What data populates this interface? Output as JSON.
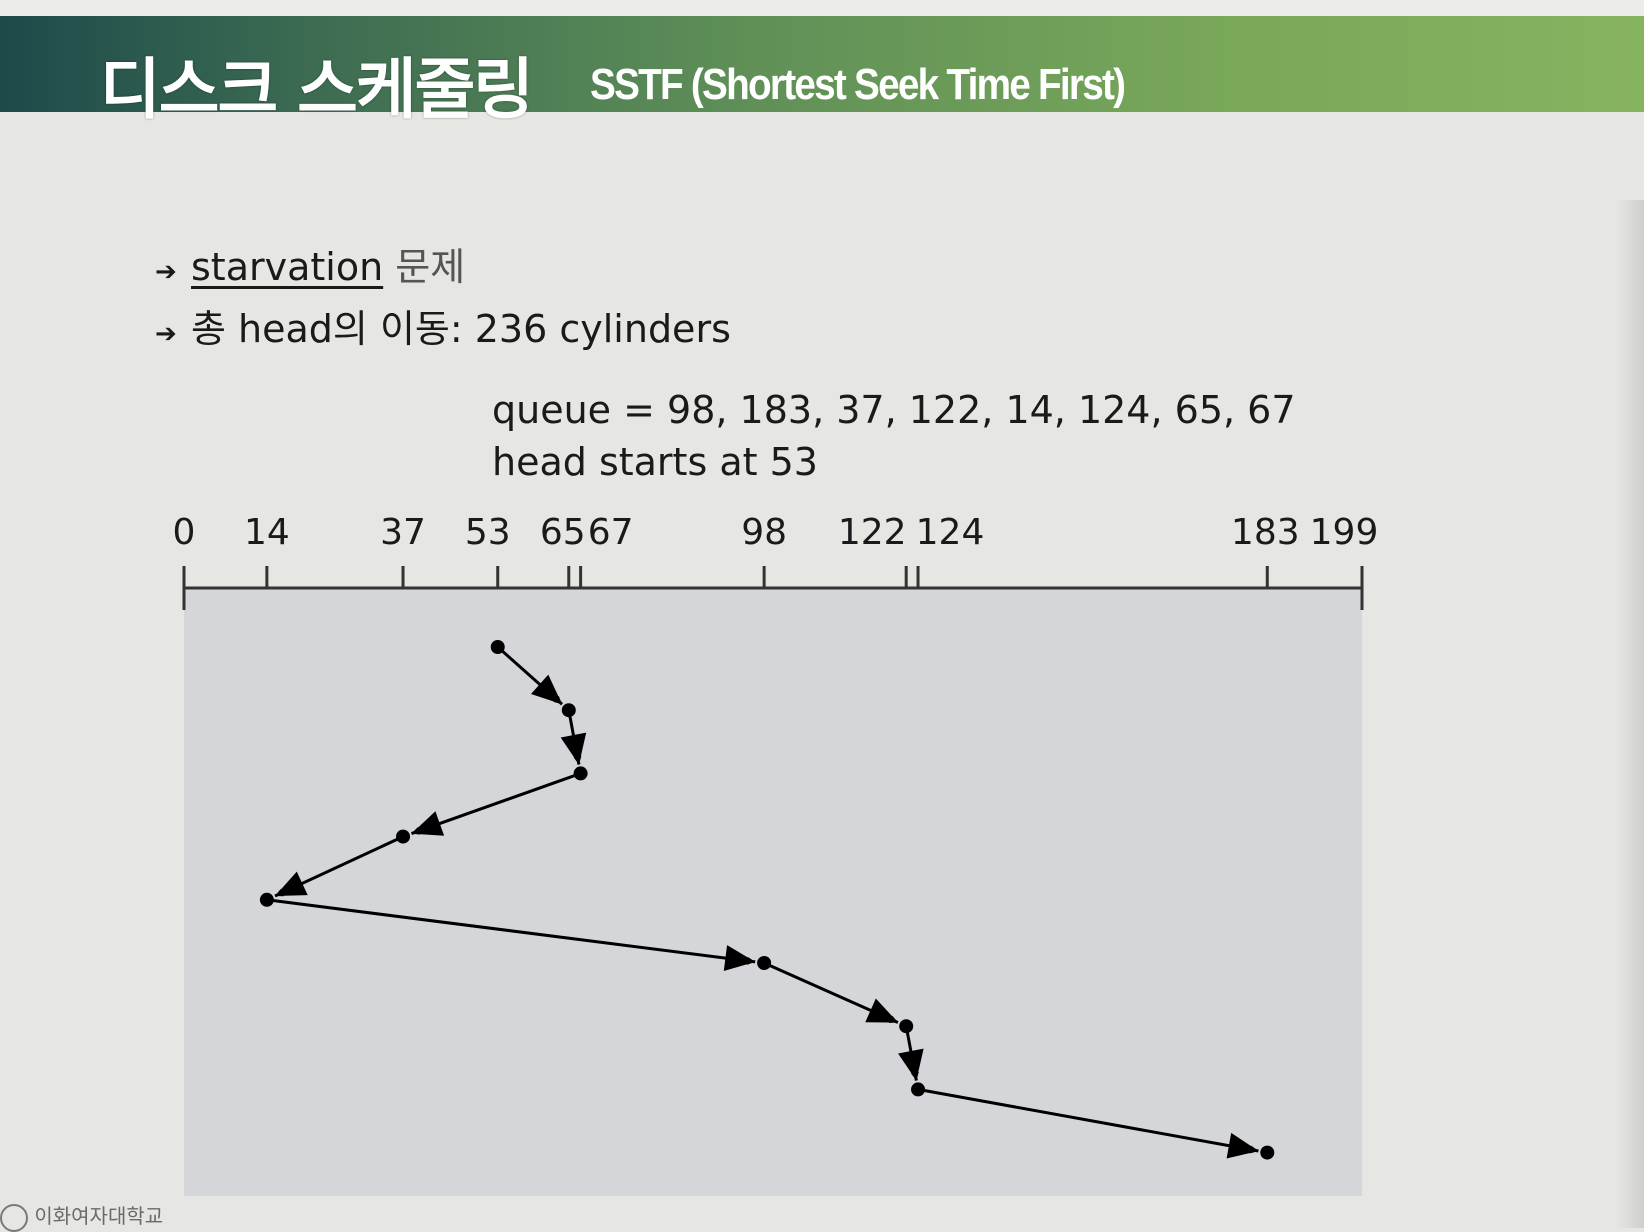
{
  "header": {
    "title": "디스크 스케줄링",
    "subtitle": "SSTF (Shortest Seek Time First)"
  },
  "bullets": [
    {
      "underlined": "starvation",
      "rest": "문제"
    },
    {
      "prefix": "총 head의 이동: 236 cylinders"
    }
  ],
  "queue_line": "queue = 98, 183, 37, 122, 14, 124, 65, 67",
  "head_line": "head starts at 53",
  "diagram": {
    "axis_min": 0,
    "axis_max": 199,
    "ticks": [
      0,
      14,
      37,
      53,
      65,
      67,
      98,
      122,
      124,
      183,
      199
    ],
    "tick_labels": [
      "0",
      "14",
      "37",
      "53",
      "65",
      "67",
      "98",
      "122",
      "124",
      "183",
      "199"
    ],
    "service_order": [
      53,
      65,
      67,
      37,
      14,
      98,
      122,
      124,
      183
    ],
    "panel_color": "#d5d6da",
    "line_color": "#000000"
  },
  "footer": {
    "logo_text": "이화여자대학교"
  }
}
